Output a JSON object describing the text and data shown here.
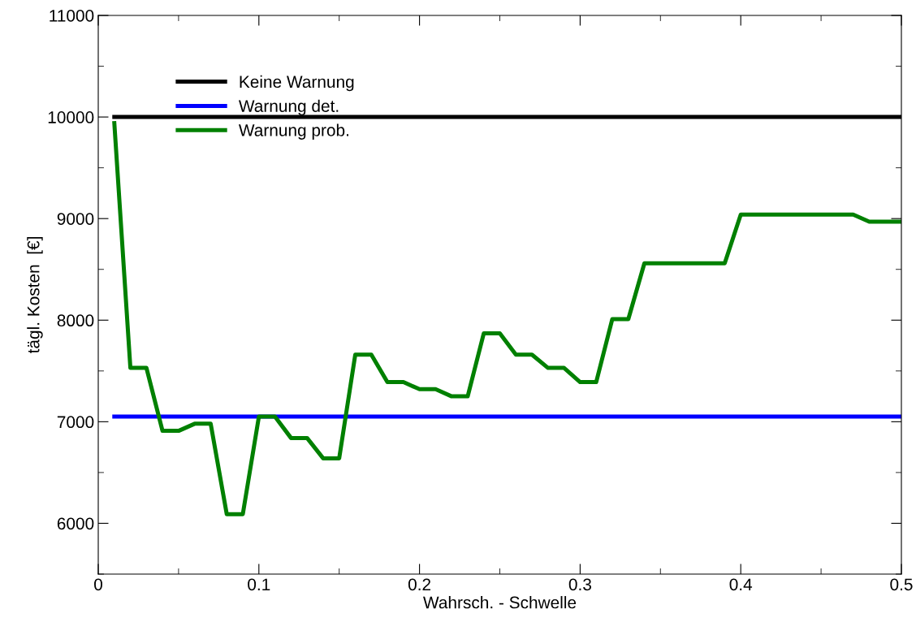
{
  "chart_data": {
    "type": "line",
    "xlabel": "Wahrsch. - Schwelle",
    "ylabel": "tägl. Kosten  [€]",
    "xlim": [
      0,
      0.5
    ],
    "xticks": [
      0,
      0.1,
      0.2,
      0.3,
      0.4,
      0.5
    ],
    "ylim": [
      5500,
      11000
    ],
    "yticks": [
      6000,
      7000,
      8000,
      9000,
      10000,
      11000
    ],
    "grid": false,
    "legend": "top left",
    "marker": "none",
    "line_style": "solid",
    "series": [
      {
        "name": "Keine Warnung",
        "color": "#000000",
        "x": [
          0.01,
          0.5
        ],
        "values": [
          10000,
          10000
        ]
      },
      {
        "name": "Warnung det.",
        "color": "#0000ff",
        "x": [
          0.01,
          0.5
        ],
        "values": [
          7050,
          7050
        ]
      },
      {
        "name": "Warnung prob.",
        "color": "#008000",
        "x": [
          0.01,
          0.02,
          0.03,
          0.04,
          0.05,
          0.06,
          0.07,
          0.08,
          0.09,
          0.1,
          0.11,
          0.12,
          0.13,
          0.14,
          0.15,
          0.16,
          0.17,
          0.18,
          0.19,
          0.2,
          0.21,
          0.22,
          0.23,
          0.24,
          0.25,
          0.26,
          0.27,
          0.28,
          0.29,
          0.3,
          0.31,
          0.32,
          0.33,
          0.34,
          0.35,
          0.36,
          0.37,
          0.38,
          0.39,
          0.4,
          0.41,
          0.42,
          0.43,
          0.44,
          0.45,
          0.46,
          0.47,
          0.48,
          0.49,
          0.5
        ],
        "values": [
          9940,
          7530,
          7530,
          6910,
          6910,
          6980,
          6980,
          6090,
          6090,
          7050,
          7050,
          6840,
          6840,
          6640,
          6640,
          7660,
          7660,
          7390,
          7390,
          7320,
          7320,
          7250,
          7250,
          7870,
          7870,
          7660,
          7660,
          7530,
          7530,
          7390,
          7390,
          8010,
          8010,
          8560,
          8560,
          8560,
          8560,
          8560,
          8560,
          9040,
          9040,
          9040,
          9040,
          9040,
          9040,
          9040,
          9040,
          8970,
          8970,
          8970
        ]
      }
    ]
  }
}
